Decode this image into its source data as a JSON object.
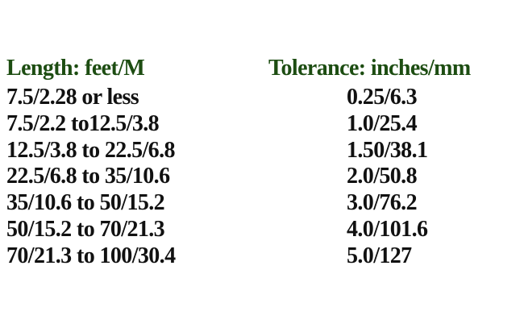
{
  "table": {
    "headers": [
      "Length: feet/M",
      "Tolerance: inches/mm"
    ],
    "header_color": "#1d4d12",
    "rows": [
      {
        "length": "7.5/2.28 or less",
        "tolerance": "0.25/6.3"
      },
      {
        "length": "7.5/2.2 to12.5/3.8",
        "tolerance": "1.0/25.4"
      },
      {
        "length": "12.5/3.8 to 22.5/6.8",
        "tolerance": "1.50/38.1"
      },
      {
        "length": "22.5/6.8 to 35/10.6",
        "tolerance": "2.0/50.8"
      },
      {
        "length": "35/10.6 to 50/15.2",
        "tolerance": "3.0/76.2"
      },
      {
        "length": "50/15.2 to 70/21.3",
        "tolerance": "4.0/101.6"
      },
      {
        "length": "70/21.3 to 100/30.4",
        "tolerance": "5.0/127"
      }
    ]
  }
}
